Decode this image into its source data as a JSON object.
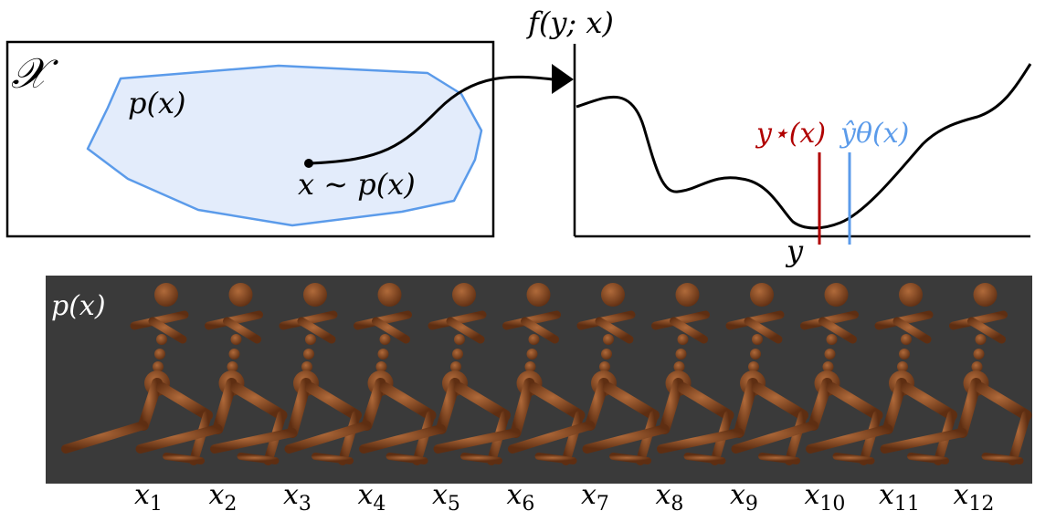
{
  "top_left_panel": {
    "space_label": "𝒳",
    "region_label": "p(x)",
    "sample_label": "x ∼ p(x)",
    "colors": {
      "region_fill": "#e3ecfb",
      "region_stroke": "#5b9bea",
      "arrow": "#000000"
    }
  },
  "top_right_panel": {
    "y_axis_label": "f(y; x)",
    "x_axis_label": "y",
    "optimum_label": "y⋆(x)",
    "prediction_label": "ŷθ(x)",
    "colors": {
      "optimum": "#b00000",
      "prediction": "#5b9bea",
      "curve": "#000000"
    }
  },
  "bottom_panel": {
    "label": "p(x)",
    "background_color": "#3a3a3a",
    "figure_color": "#8a4a22",
    "sample_labels": [
      "x1",
      "x2",
      "x3",
      "x4",
      "x5",
      "x6",
      "x7",
      "x8",
      "x9",
      "x10",
      "x11",
      "x12"
    ]
  }
}
